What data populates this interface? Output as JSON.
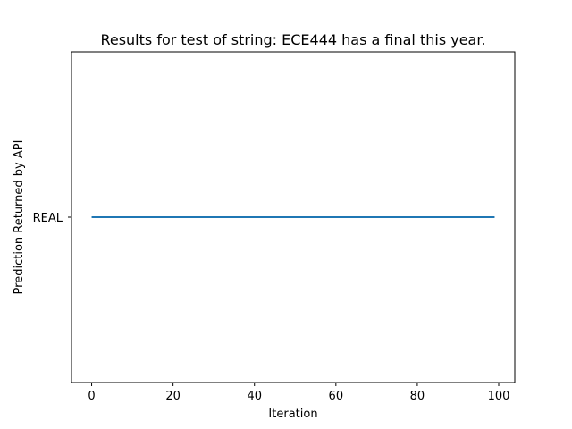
{
  "chart_data": {
    "type": "line",
    "title": "Results for test of string: ECE444 has a final this year.",
    "xlabel": "Iteration",
    "ylabel": "Prediction Returned by API",
    "xlim": [
      -4.95,
      103.95
    ],
    "x_ticks": [
      0,
      20,
      40,
      60,
      80,
      100
    ],
    "y_categories": [
      "REAL"
    ],
    "grid": false,
    "series": [
      {
        "x_start": 0,
        "x_end": 99,
        "value": "REAL",
        "color": "#1f77b4"
      }
    ]
  }
}
